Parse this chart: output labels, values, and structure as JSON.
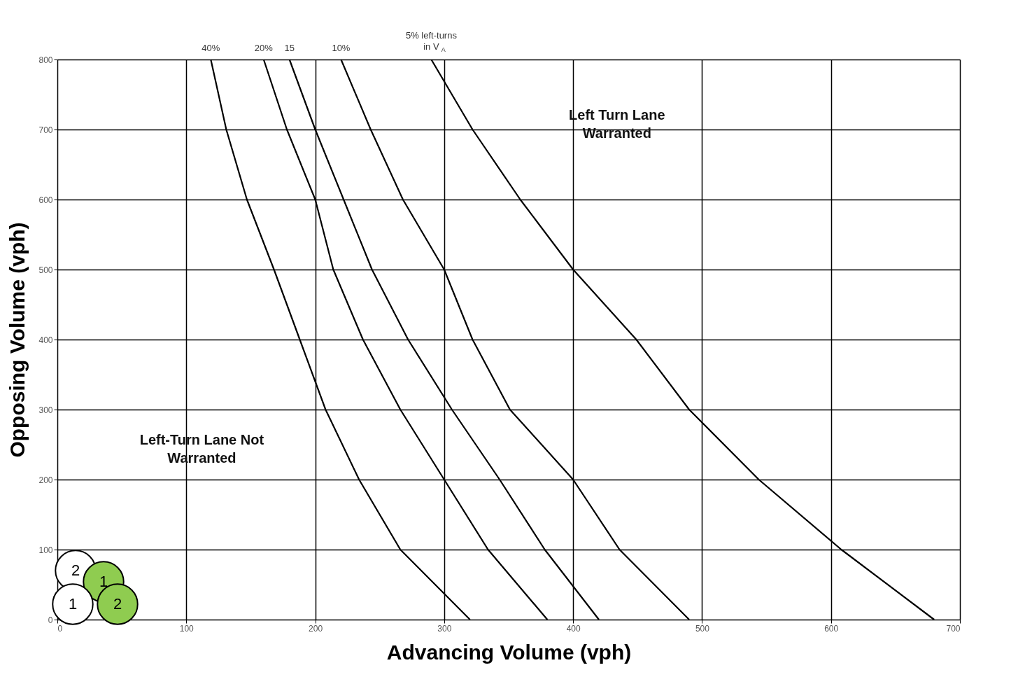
{
  "chart_data": {
    "type": "line",
    "xlabel": "Advancing Volume (vph)",
    "ylabel": "Opposing Volume (vph)",
    "xlim": [
      0,
      700
    ],
    "xticks": [
      0,
      100,
      200,
      300,
      400,
      500,
      600,
      700
    ],
    "ylim": [
      0,
      800
    ],
    "yticks": [
      0,
      100,
      200,
      300,
      400,
      500,
      600,
      700,
      800
    ],
    "grid": true,
    "legend": false,
    "marker": "none",
    "line_style": "solid",
    "series": [
      {
        "name": "40%",
        "color": "#000000",
        "x": [
          119,
          131,
          147,
          168,
          188,
          208,
          234,
          266,
          320
        ],
        "values": [
          800,
          700,
          600,
          500,
          400,
          300,
          200,
          100,
          0
        ]
      },
      {
        "name": "20%",
        "color": "#000000",
        "x": [
          160,
          178,
          200,
          214,
          237,
          266,
          300,
          334,
          380
        ],
        "values": [
          800,
          700,
          600,
          500,
          400,
          300,
          200,
          100,
          0
        ]
      },
      {
        "name": "15",
        "color": "#000000",
        "x": [
          180,
          200,
          222,
          244,
          272,
          306,
          343,
          378,
          420
        ],
        "values": [
          800,
          700,
          600,
          500,
          400,
          300,
          200,
          100,
          0
        ]
      },
      {
        "name": "10%",
        "color": "#000000",
        "x": [
          220,
          243,
          268,
          300,
          322,
          351,
          400,
          436,
          490
        ],
        "values": [
          800,
          700,
          600,
          500,
          400,
          300,
          200,
          100,
          0
        ]
      },
      {
        "name": "5% left-turns in V$_{A}$",
        "color": "#000000",
        "x": [
          290,
          322,
          359,
          400,
          449,
          490,
          544,
          608,
          680
        ],
        "values": [
          800,
          700,
          600,
          500,
          400,
          300,
          200,
          100,
          0
        ]
      }
    ],
    "annotations": [
      "Left Turn Lane Warranted",
      "Left-Turn Lane Not Warranted",
      "2",
      "1",
      "1",
      "2"
    ]
  }
}
